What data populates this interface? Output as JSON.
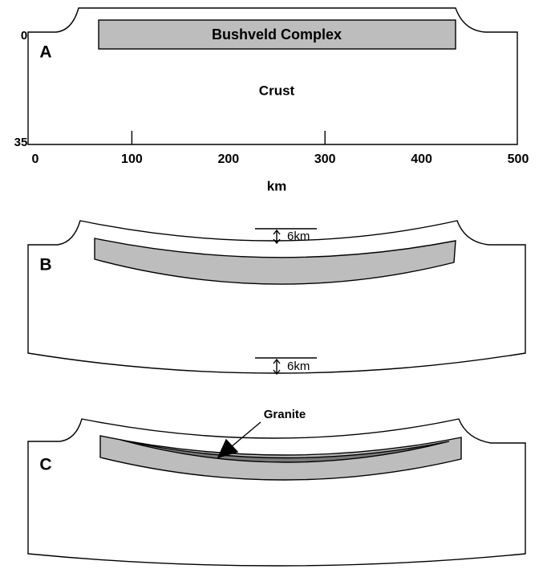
{
  "panels": [
    {
      "label": "A",
      "body": "Bushveld Complex",
      "region": "Crust",
      "depth_top": "0",
      "depth_bottom": "35"
    },
    {
      "label": "B",
      "offset_top": "6km",
      "offset_bottom": "6km"
    },
    {
      "label": "C",
      "annotation": "Granite"
    }
  ],
  "x_axis": {
    "ticks": [
      0,
      100,
      200,
      300,
      400,
      500
    ],
    "unit": "km",
    "marked_ticks": [
      100,
      300
    ]
  }
}
